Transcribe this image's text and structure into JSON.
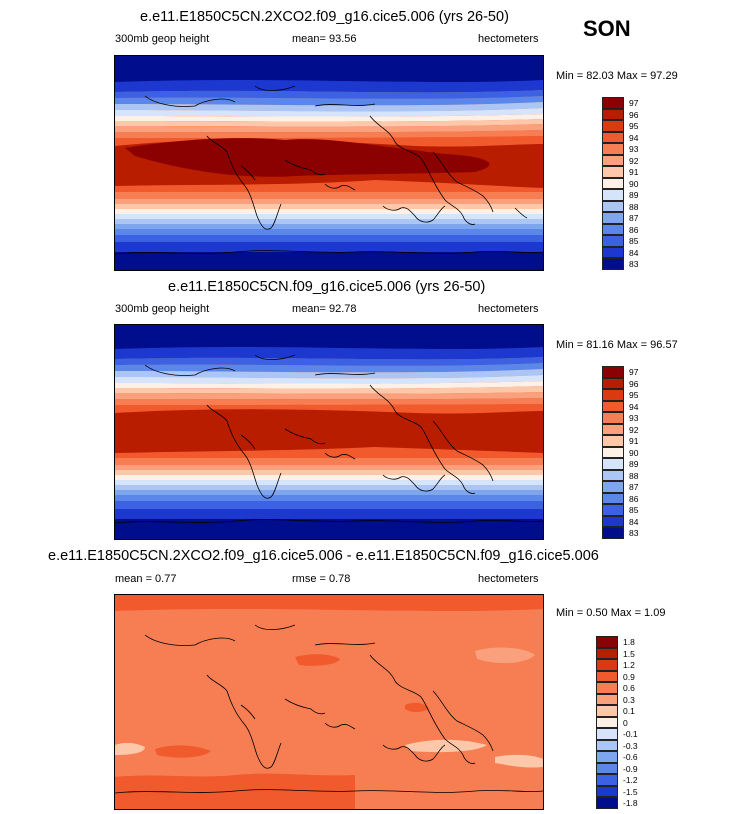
{
  "season": "SON",
  "panels": [
    {
      "title": "e.e11.E1850C5CN.2XCO2.f09_g16.cice5.006 (yrs 26-50)",
      "left_label": "300mb geop height",
      "center_label": "mean=  93.56",
      "right_label": "hectometers",
      "minmax": "Min =  82.03 Max =  97.29",
      "colorbar": {
        "labels": [
          "97",
          "96",
          "95",
          "94",
          "93",
          "92",
          "91",
          "90",
          "89",
          "88",
          "87",
          "86",
          "85",
          "84",
          "83"
        ],
        "colors": [
          "#8b0000",
          "#b81d00",
          "#d93a10",
          "#f05a2c",
          "#f77d52",
          "#fba07c",
          "#fdc8a9",
          "#fdf0e6",
          "#d6e4fb",
          "#abc6f5",
          "#7ea6ef",
          "#5b86ea",
          "#3c61e2",
          "#1c38cf",
          "#000d8c"
        ]
      }
    },
    {
      "title": "e.e11.E1850C5CN.f09_g16.cice5.006 (yrs 26-50)",
      "left_label": "300mb geop height",
      "center_label": "mean=  92.78",
      "right_label": "hectometers",
      "minmax": "Min =  81.16 Max =  96.57",
      "colorbar": {
        "labels": [
          "97",
          "96",
          "95",
          "94",
          "93",
          "92",
          "91",
          "90",
          "89",
          "88",
          "87",
          "86",
          "85",
          "84",
          "83"
        ],
        "colors": [
          "#8b0000",
          "#b81d00",
          "#d93a10",
          "#f05a2c",
          "#f77d52",
          "#fba07c",
          "#fdc8a9",
          "#fdf0e6",
          "#d6e4fb",
          "#abc6f5",
          "#7ea6ef",
          "#5b86ea",
          "#3c61e2",
          "#1c38cf",
          "#000d8c"
        ]
      }
    },
    {
      "title": "e.e11.E1850C5CN.2XCO2.f09_g16.cice5.006 - e.e11.E1850C5CN.f09_g16.cice5.006",
      "left_label": "mean =   0.77",
      "center_label": "rmse =   0.78",
      "right_label": "hectometers",
      "minmax": "Min =   0.50 Max =   1.09",
      "colorbar": {
        "labels": [
          "1.8",
          "1.5",
          "1.2",
          "0.9",
          "0.6",
          "0.3",
          "0.1",
          "0",
          "-0.1",
          "-0.3",
          "-0.6",
          "-0.9",
          "-1.2",
          "-1.5",
          "-1.8"
        ],
        "colors": [
          "#8b0000",
          "#b81d00",
          "#d93a10",
          "#f05a2c",
          "#f77d52",
          "#fba07c",
          "#fdc8a9",
          "#fdf0e6",
          "#d6e4fb",
          "#abc6f5",
          "#7ea6ef",
          "#5b86ea",
          "#3c61e2",
          "#1c38cf",
          "#000d8c"
        ]
      }
    }
  ]
}
